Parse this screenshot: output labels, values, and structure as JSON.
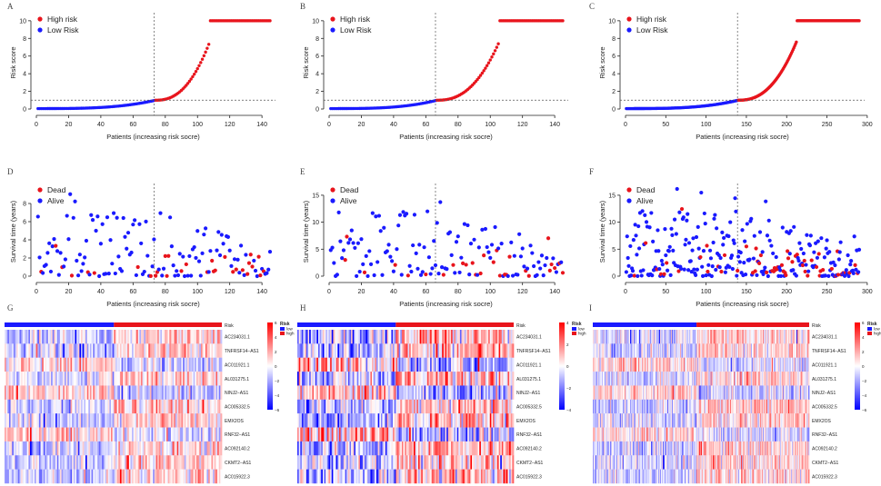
{
  "panel_letters": [
    "A",
    "B",
    "C",
    "D",
    "E",
    "F",
    "G",
    "H",
    "I"
  ],
  "colors": {
    "high": "#e8141c",
    "low": "#1a1aff",
    "axis": "#222222",
    "ref": "#555555",
    "heat_low": "#0000ff",
    "heat_mid": "#ffffff",
    "heat_high": "#ff0000"
  },
  "chart_data": [
    {
      "id": "A",
      "type": "scatter",
      "xlabel": "Patients (increasing risk socre)",
      "ylabel": "Risk score",
      "x_ticks": [
        0,
        20,
        40,
        60,
        80,
        100,
        120,
        140
      ],
      "y_ticks": [
        0,
        2,
        4,
        6,
        8,
        10
      ],
      "xlim": [
        0,
        145
      ],
      "ylim": [
        0,
        10.5
      ],
      "n": 145,
      "cutoff_x": 73,
      "cutoff_y": 1,
      "legend": [
        "High risk",
        "Low Risk"
      ],
      "start": 0.05,
      "at_cut": 1.0,
      "cap_start": 107,
      "cap_value": 10
    },
    {
      "id": "B",
      "type": "scatter",
      "xlabel": "Patients (increasing risk socre)",
      "ylabel": "Risk score",
      "x_ticks": [
        0,
        20,
        40,
        60,
        80,
        100,
        120,
        140
      ],
      "y_ticks": [
        0,
        2,
        4,
        6,
        8,
        10
      ],
      "xlim": [
        0,
        145
      ],
      "ylim": [
        0,
        10.5
      ],
      "n": 145,
      "cutoff_x": 66,
      "cutoff_y": 1,
      "legend": [
        "High risk",
        "Low Risk"
      ],
      "start": 0.05,
      "at_cut": 1.0,
      "cap_start": 105,
      "cap_value": 10
    },
    {
      "id": "C",
      "type": "scatter",
      "xlabel": "Patients (increasing risk socre)",
      "ylabel": "Risk score",
      "x_ticks": [
        0,
        50,
        100,
        150,
        200,
        250,
        300
      ],
      "y_ticks": [
        0,
        2,
        4,
        6,
        8,
        10
      ],
      "xlim": [
        0,
        290
      ],
      "ylim": [
        0,
        10.5
      ],
      "n": 290,
      "cutoff_x": 139,
      "cutoff_y": 1,
      "legend": [
        "High risk",
        "Low Risk"
      ],
      "start": 0.05,
      "at_cut": 1.0,
      "cap_start": 212,
      "cap_value": 10
    },
    {
      "id": "D",
      "type": "scatter",
      "xlabel": "Patients (increasing risk socre)",
      "ylabel": "Survival time (years)",
      "x_ticks": [
        0,
        20,
        40,
        60,
        80,
        100,
        120,
        140
      ],
      "y_ticks": [
        0,
        2,
        4,
        6,
        8
      ],
      "xlim": [
        0,
        145
      ],
      "ylim": [
        0,
        9.8
      ],
      "n": 145,
      "cutoff_x": 73,
      "legend": [
        "Dead",
        "Alive"
      ],
      "max_y": 9.6
    },
    {
      "id": "E",
      "type": "scatter",
      "xlabel": "Patients (increasing risk socre)",
      "ylabel": "Survival time (years)",
      "x_ticks": [
        0,
        20,
        40,
        60,
        80,
        100,
        120,
        140
      ],
      "y_ticks": [
        0,
        5,
        10,
        15
      ],
      "xlim": [
        0,
        145
      ],
      "ylim": [
        0,
        16.5
      ],
      "n": 145,
      "cutoff_x": 66,
      "legend": [
        "Dead",
        "Alive"
      ],
      "max_y": 16.2
    },
    {
      "id": "F",
      "type": "scatter",
      "xlabel": "Patients (increasing risk socre)",
      "ylabel": "Survival time (years)",
      "x_ticks": [
        0,
        50,
        100,
        150,
        200,
        250,
        300
      ],
      "y_ticks": [
        0,
        5,
        10,
        15
      ],
      "xlim": [
        0,
        290
      ],
      "ylim": [
        0,
        16.5
      ],
      "n": 290,
      "cutoff_x": 139,
      "legend": [
        "Dead",
        "Alive"
      ],
      "max_y": 16.2
    },
    {
      "id": "G",
      "type": "heatmap",
      "genes": [
        "AC234031.1",
        "TNFRSF14−AS1",
        "AC011921.1",
        "AL031275.1",
        "NINJ2−AS1",
        "AC005332.5",
        "EMX2OS",
        "RNF32−AS1",
        "AC092140.2",
        "CKMT2−AS1",
        "AC015922.3"
      ],
      "n": 145,
      "low_n": 73,
      "risk_label": "Risk",
      "legend_title": "Risk",
      "legend_items": [
        "low",
        "high"
      ],
      "scale_ticks": [
        "6",
        "4",
        "2",
        "0",
        "−2",
        "−4",
        "−6"
      ],
      "scale_range": [
        -6,
        6
      ]
    },
    {
      "id": "H",
      "type": "heatmap",
      "genes": [
        "AC234031.1",
        "TNFRSF14−AS1",
        "AC011921.1",
        "AL031275.1",
        "NINJ2−AS1",
        "AC005332.5",
        "EMX2OS",
        "RNF32−AS1",
        "AC092140.2",
        "CKMT2−AS1",
        "AC015922.3"
      ],
      "n": 145,
      "low_n": 66,
      "risk_label": "Risk",
      "legend_title": "Risk",
      "legend_items": [
        "low",
        "high"
      ],
      "scale_ticks": [
        "4",
        "2",
        "0",
        "−2",
        "−4"
      ],
      "scale_range": [
        -4,
        4
      ]
    },
    {
      "id": "I",
      "type": "heatmap",
      "genes": [
        "AC234031.1",
        "TNFRSF14−AS1",
        "AC011921.1",
        "AL031275.1",
        "NINJ2−AS1",
        "AC005332.5",
        "EMX2OS",
        "RNF32−AS1",
        "AC092140.2",
        "CKMT2−AS1",
        "AC015922.3"
      ],
      "n": 290,
      "low_n": 139,
      "risk_label": "Risk",
      "legend_title": "Risk",
      "legend_items": [
        "low",
        "high"
      ],
      "scale_ticks": [
        "6",
        "4",
        "2",
        "0",
        "−2",
        "−4",
        "−6"
      ],
      "scale_range": [
        -6,
        6
      ]
    }
  ]
}
